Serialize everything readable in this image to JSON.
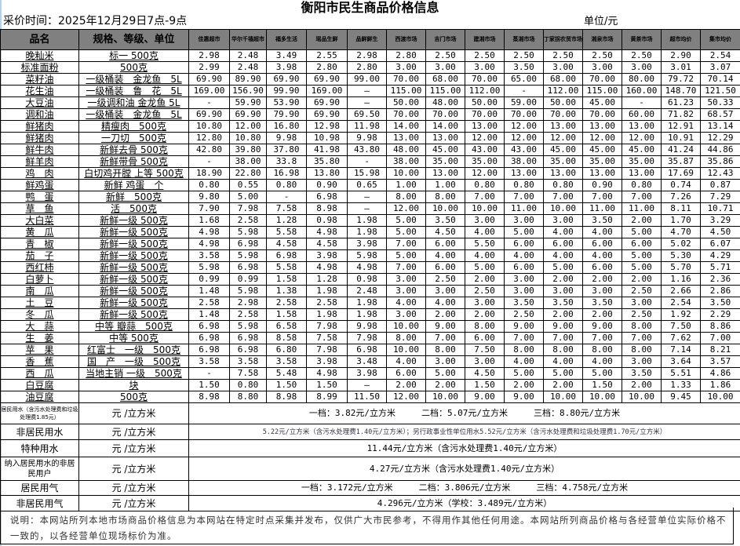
{
  "title": "衡阳市民生商品价格信息",
  "collect_time": "采价时间：2025年12月29日7点-9点",
  "unit": "单位/元",
  "headers": [
    "品名",
    "规格、等级、单位",
    "佳惠超市",
    "华尔千禧超市",
    "福多生活",
    "瑶品生鲜",
    "品鲜鲜生",
    "西渡市场",
    "吉门市场",
    "建湘市场",
    "蒸湘市场",
    "丁家拐农贸市场",
    "湘泉市场",
    "黄茶市场",
    "超市均价",
    "集市均价"
  ],
  "rows": [
    [
      "晚籼米",
      "标一 500克",
      "2.98",
      "2.48",
      "3.49",
      "2.55",
      "2.98",
      "2.80",
      "2.50",
      "2.50",
      "2.50",
      "2.50",
      "2.50",
      "2.50",
      "2.90",
      "2.54"
    ],
    [
      "标准面粉",
      "500克",
      "2.99",
      "2.48",
      "3.98",
      "2.80",
      "2.80",
      "3.00",
      "3.00",
      "3.00",
      "3.50",
      "3.00",
      "3.00",
      "3.00",
      "3.01",
      "3.07"
    ],
    [
      "菜籽油",
      "一级桶装　金龙鱼　5L",
      "69.90",
      "89.90",
      "69.90",
      "69.90",
      "99.00",
      "70.00",
      "68.00",
      "70.00",
      "65.00",
      "68.00",
      "70.00",
      "80.00",
      "79.72",
      "70.14"
    ],
    [
      "花生油",
      "一级桶装　鲁　花　5L",
      "169.00",
      "156.90",
      "99.90",
      "169.00",
      "—",
      "115.00",
      "115.00",
      "112.00",
      "-",
      "112.00",
      "115.00",
      "160.00",
      "148.70",
      "121.50"
    ],
    [
      "大豆油",
      "一级调和油 金龙鱼 5L",
      "-",
      "59.90",
      "53.90",
      "69.90",
      "—",
      "50.00",
      "48.00",
      "50.00",
      "59.00",
      "50.00",
      "45.00",
      "-",
      "61.23",
      "50.33"
    ],
    [
      "调和油",
      "一级桶装　金龙鱼　5L",
      "69.90",
      "69.90",
      "79.90",
      "69.90",
      "69.50",
      "70.00",
      "70.00",
      "70.00",
      "70.00",
      "70.00",
      "70.00",
      "60.00",
      "71.82",
      "68.57"
    ],
    [
      "鲜猪肉",
      "精瘦肉　500克",
      "10.80",
      "12.00",
      "16.80",
      "12.98",
      "11.98",
      "14.00",
      "14.00",
      "13.00",
      "12.00",
      "13.00",
      "13.00",
      "13.00",
      "12.91",
      "13.14"
    ],
    [
      "鲜猪肉",
      "一刀切　500克",
      "12.80",
      "10.80",
      "9.98",
      "10.98",
      "9.98",
      "13.00",
      "13.00",
      "12.00",
      "12.00",
      "12.00",
      "12.00",
      "12.00",
      "10.91",
      "12.29"
    ],
    [
      "鲜牛肉",
      "新鲜去骨 500克",
      "42.80",
      "39.80",
      "37.80",
      "41.98",
      "43.80",
      "48.00",
      "45.00",
      "43.00",
      "43.00",
      "45.00",
      "45.00",
      "45.00",
      "41.24",
      "44.86"
    ],
    [
      "鲜羊肉",
      "新鲜带骨 500克",
      "-",
      "38.00",
      "33.8",
      "35.80",
      "-",
      "38.00",
      "35.00",
      "35.00",
      "38.00",
      "35.00",
      "35.00",
      "35.00",
      "35.87",
      "35.86"
    ],
    [
      "鸡　肉",
      "白切鸡开膛 上等 500克",
      "18.90",
      "22.80",
      "16.98",
      "13.80",
      "15.98",
      "10.00",
      "13.00",
      "12.00",
      "13.00",
      "13.00",
      "13.00",
      "13.00",
      "17.69",
      "12.43"
    ],
    [
      "鲜鸡蛋",
      "新鲜 鸡蛋　个",
      "0.80",
      "0.55",
      "0.80",
      "0.90",
      "0.65",
      "1.00",
      "1.00",
      "0.80",
      "0.80",
      "0.80",
      "0.90",
      "0.80",
      "0.74",
      "0.87"
    ],
    [
      "鸭　蛋",
      "新鲜　500克",
      "9.80",
      "5.00",
      "-",
      "6.98",
      "—",
      "8.00",
      "8.00",
      "7.00",
      "7.00",
      "7.00",
      "7.00",
      "7.00",
      "7.26",
      "7.29"
    ],
    [
      "草　鱼",
      "活　500克",
      "7.90",
      "7.98",
      "7.58",
      "8.98",
      "—",
      "12.00",
      "10.00",
      "10.00",
      "11.00",
      "10.00",
      "11.00",
      "11.00",
      "8.11",
      "10.71"
    ],
    [
      "大白菜",
      "新鲜一级 500克",
      "1.68",
      "2.58",
      "1.28",
      "0.98",
      "1.98",
      "5.00",
      "3.50",
      "3.00",
      "3.00",
      "3.00",
      "3.50",
      "2.00",
      "1.70",
      "3.29"
    ],
    [
      "黄　瓜",
      "新鲜一级 500克",
      "4.98",
      "5.98",
      "5.58",
      "4.98",
      "1.98",
      "5.00",
      "4.50",
      "4.00",
      "5.00",
      "4.00",
      "4.00",
      "5.00",
      "4.70",
      "4.50"
    ],
    [
      "青　椒",
      "新鲜一级 500克",
      "4.98",
      "6.98",
      "4.58",
      "4.58",
      "3.98",
      "7.00",
      "6.00",
      "5.50",
      "6.00",
      "6.00",
      "6.00",
      "6.00",
      "5.02",
      "6.07"
    ],
    [
      "茄　子",
      "新鲜一级 500克",
      "3.58",
      "5.98",
      "6.98",
      "3.98",
      "5.98",
      "5.00",
      "4.00",
      "4.00",
      "4.00",
      "4.00",
      "4.00",
      "5.00",
      "5.30",
      "4.29"
    ],
    [
      "西红柿",
      "新鲜一级 500克",
      "5.98",
      "6.98",
      "5.58",
      "4.98",
      "4.98",
      "7.00",
      "6.00",
      "5.00",
      "6.00",
      "5.00",
      "6.00",
      "5.00",
      "5.70",
      "5.71"
    ],
    [
      "白萝卜",
      "新鲜一级 500克",
      "0.99",
      "0.99",
      "1.58",
      "1.28",
      "0.98",
      "3.00",
      "2.50",
      "2.00",
      "3.00",
      "2.00",
      "2.00",
      "2.00",
      "1.16",
      "2.36"
    ],
    [
      "南　瓜",
      "新鲜一级 500克",
      "1.48",
      "5.98",
      "1.38",
      "1.98",
      "2.48",
      "3.00",
      "3.00",
      "2.50",
      "3.00",
      "3.00",
      "3.00",
      "2.50",
      "2.66",
      "2.86"
    ],
    [
      "土　豆",
      "新鲜一级 500克",
      "2.58",
      "2.98",
      "2.58",
      "2.58",
      "1.98",
      "4.00",
      "4.00",
      "3.00",
      "3.50",
      "3.50",
      "3.50",
      "3.00",
      "2.54",
      "3.50"
    ],
    [
      "冬　瓜",
      "新鲜一级 500克",
      "1.48",
      "2.58",
      "1.58",
      "1.98",
      "1.98",
      "3.00",
      "2.00",
      "2.00",
      "2.50",
      "2.00",
      "2.00",
      "2.50",
      "1.92",
      "2.29"
    ],
    [
      "大　蒜",
      "中等 瓣蒜　500克",
      "6.98",
      "5.98",
      "6.58",
      "7.98",
      "9.98",
      "10.00",
      "9.00",
      "8.00",
      "9.00",
      "9.00",
      "9.00",
      "8.00",
      "7.50",
      "8.86"
    ],
    [
      "生　姜",
      "中等 500克",
      "6.98",
      "6.98",
      "8.58",
      "7.58",
      "7.98",
      "8.00",
      "7.00",
      "6.00",
      "7.00",
      "7.00",
      "7.00",
      "7.00",
      "7.62",
      "7.00"
    ],
    [
      "苹　果",
      "红富士　一级　500克",
      "6.98",
      "6.98",
      "6.80",
      "7.98",
      "6.98",
      "10.00",
      "8.00",
      "7.50",
      "8.00",
      "8.00",
      "8.00",
      "8.00",
      "7.14",
      "8.21"
    ],
    [
      "香　蕉",
      "国　产　一级　500克",
      "3.58",
      "3.58",
      "3.58",
      "3.98",
      "3.48",
      "4.00",
      "3.00",
      "3.00",
      "4.00",
      "4.00",
      "4.00",
      "3.00",
      "3.64",
      "3.57"
    ],
    [
      "西　瓜",
      "当地主销 一级　500克",
      "-",
      "7.58",
      "5.48",
      "4.98",
      "3.98",
      "6.00",
      "5.00",
      "4.50",
      "5.00",
      "5.00",
      "5.00",
      "3.50",
      "5.51",
      "4.86"
    ],
    [
      "白豆腐",
      "块",
      "1.50",
      "0.80",
      "1.50",
      "1.50",
      "—",
      "2.00",
      "2.00",
      "1.50",
      "2.00",
      "2.00",
      "1.50",
      "2.00",
      "1.33",
      "1.86"
    ],
    [
      "油豆腐",
      "500克",
      "8.98",
      "8.80",
      "8.98",
      "8.99",
      "11.50",
      "12.00",
      "10.00",
      "9.00",
      "9.00",
      "10.00",
      "10.00",
      "10.00",
      "9.45",
      "10.00"
    ]
  ],
  "utilities": [
    {
      "name": "居民用水（含污水处理费和垃圾处理费1.85元）",
      "unit": "元 /立方米",
      "value": "一档：3.82元/立方米　　　二档：5.07元/立方米　　　三档：8.80元/立方米"
    },
    {
      "name": "非居民用水",
      "unit": "元 /立方米",
      "value": "5.22元/立方米（含污水处理费1.40元/立方米）；另行政事业性单位用水5.52元/立方米（含污水处理费和垃圾处理费1.70元/立方米）"
    },
    {
      "name": "特种用水",
      "unit": "元 /立方米",
      "value": "11.44元/立方米（含污水处理费1.40元/立方米）"
    },
    {
      "name": "纳入居民用水的非居民用户",
      "unit": "元 /立方米",
      "value": "4.27元/立方米（含污水处理费1.40元/立方米）"
    },
    {
      "name": "居民用气",
      "unit": "元 /立方米",
      "value": "一档：3.172元/立方米　　　二档：3.806元/立方米　　　三档：4.758元/立方米"
    },
    {
      "name": "非居民用气",
      "unit": "元 /立方米",
      "value": "4.296元/立方米（学校：3.489元/立方米）"
    }
  ],
  "note": "说明：本网站所列本地市场商品价格信息为本网站在特定时点采集并发布，仅供广大市民参考，不得用作其他任何用途。本网站所列商品价格与各经营单位实际价格不一致的，以各经营单位现场标价为准。"
}
